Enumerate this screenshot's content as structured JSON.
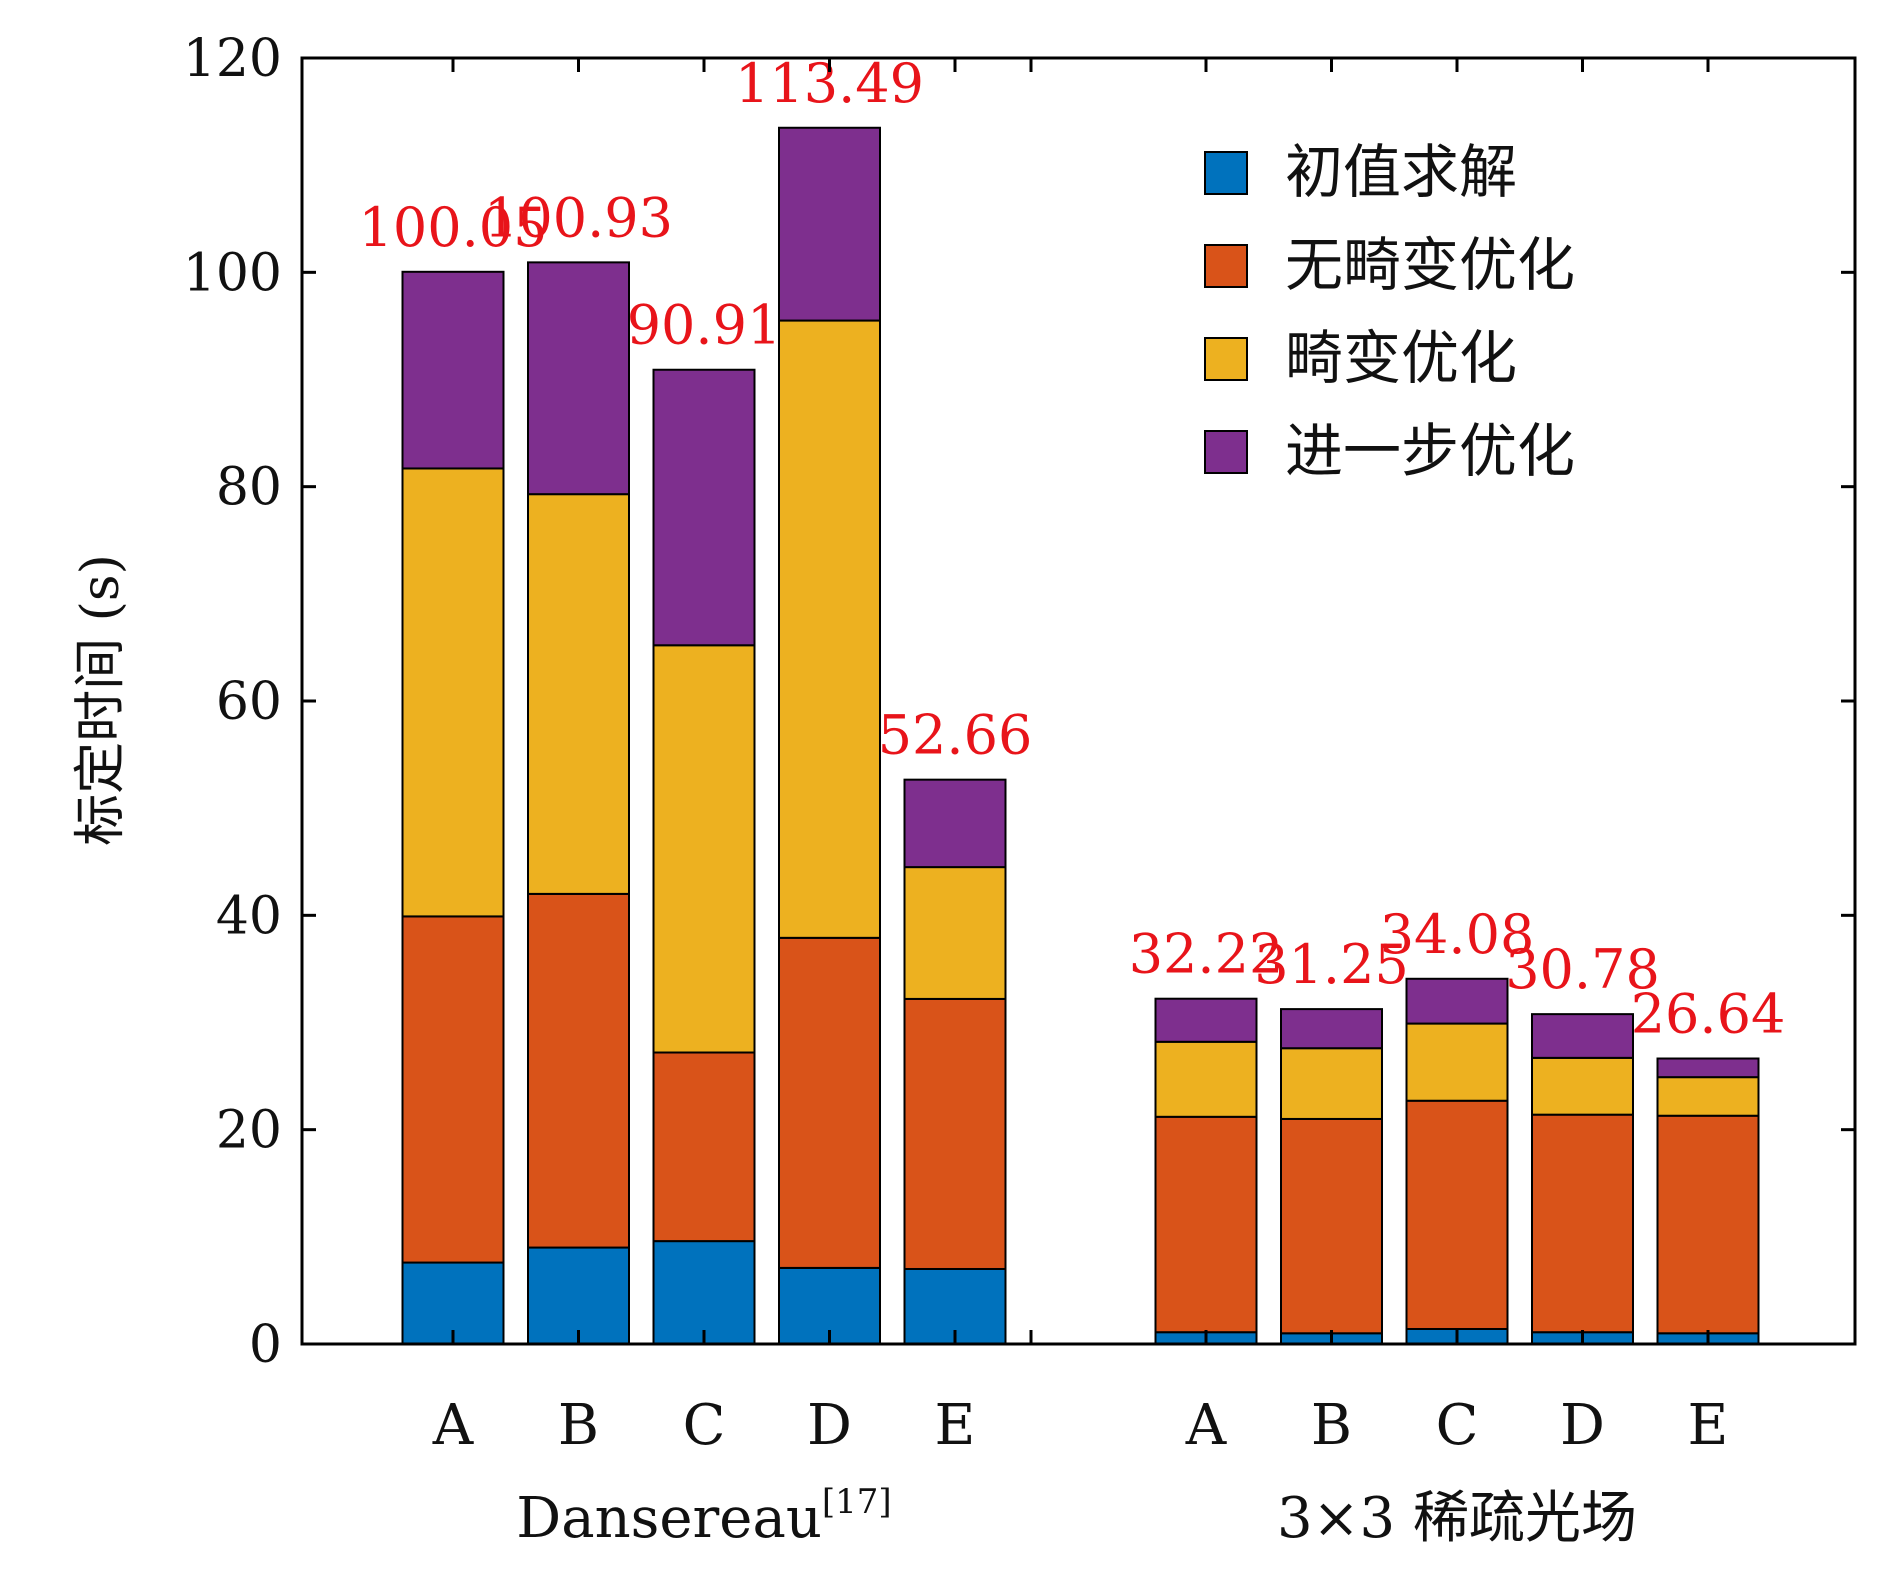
{
  "chart_data": {
    "type": "bar",
    "stacked": true,
    "ylabel": "标定时间 (s)",
    "ylim": [
      0,
      120
    ],
    "yticks": [
      0,
      20,
      40,
      60,
      80,
      100,
      120
    ],
    "grid": false,
    "legend_position": "top-right",
    "total_label_color": "#e8141a",
    "series": [
      {
        "name": "初值求解",
        "color": "#0072bd"
      },
      {
        "name": "无畸变优化",
        "color": "#d95319"
      },
      {
        "name": "畸变优化",
        "color": "#edb120"
      },
      {
        "name": "进一步优化",
        "color": "#7e2f8e"
      }
    ],
    "groups": [
      {
        "label": "Dansereau",
        "label_sup": "[17]",
        "categories": [
          "A",
          "B",
          "C",
          "D",
          "E"
        ],
        "values": [
          [
            7.6,
            32.3,
            41.8,
            18.35
          ],
          [
            9.0,
            33.0,
            37.3,
            21.63
          ],
          [
            9.6,
            17.6,
            38.0,
            25.71
          ],
          [
            7.1,
            30.8,
            57.6,
            17.99
          ],
          [
            7.0,
            25.2,
            12.3,
            8.16
          ]
        ],
        "totals": [
          "100.05",
          "100.93",
          "90.91",
          "113.49",
          "52.66"
        ]
      },
      {
        "label": "3×3 稀疏光场",
        "label_sup": "",
        "categories": [
          "A",
          "B",
          "C",
          "D",
          "E"
        ],
        "values": [
          [
            1.1,
            20.1,
            7.0,
            4.02
          ],
          [
            1.0,
            20.0,
            6.6,
            3.65
          ],
          [
            1.4,
            21.3,
            7.2,
            4.18
          ],
          [
            1.1,
            20.3,
            5.3,
            4.08
          ],
          [
            1.0,
            20.3,
            3.6,
            1.74
          ]
        ],
        "totals": [
          "32.22",
          "31.25",
          "34.08",
          "30.78",
          "26.64"
        ]
      }
    ]
  }
}
